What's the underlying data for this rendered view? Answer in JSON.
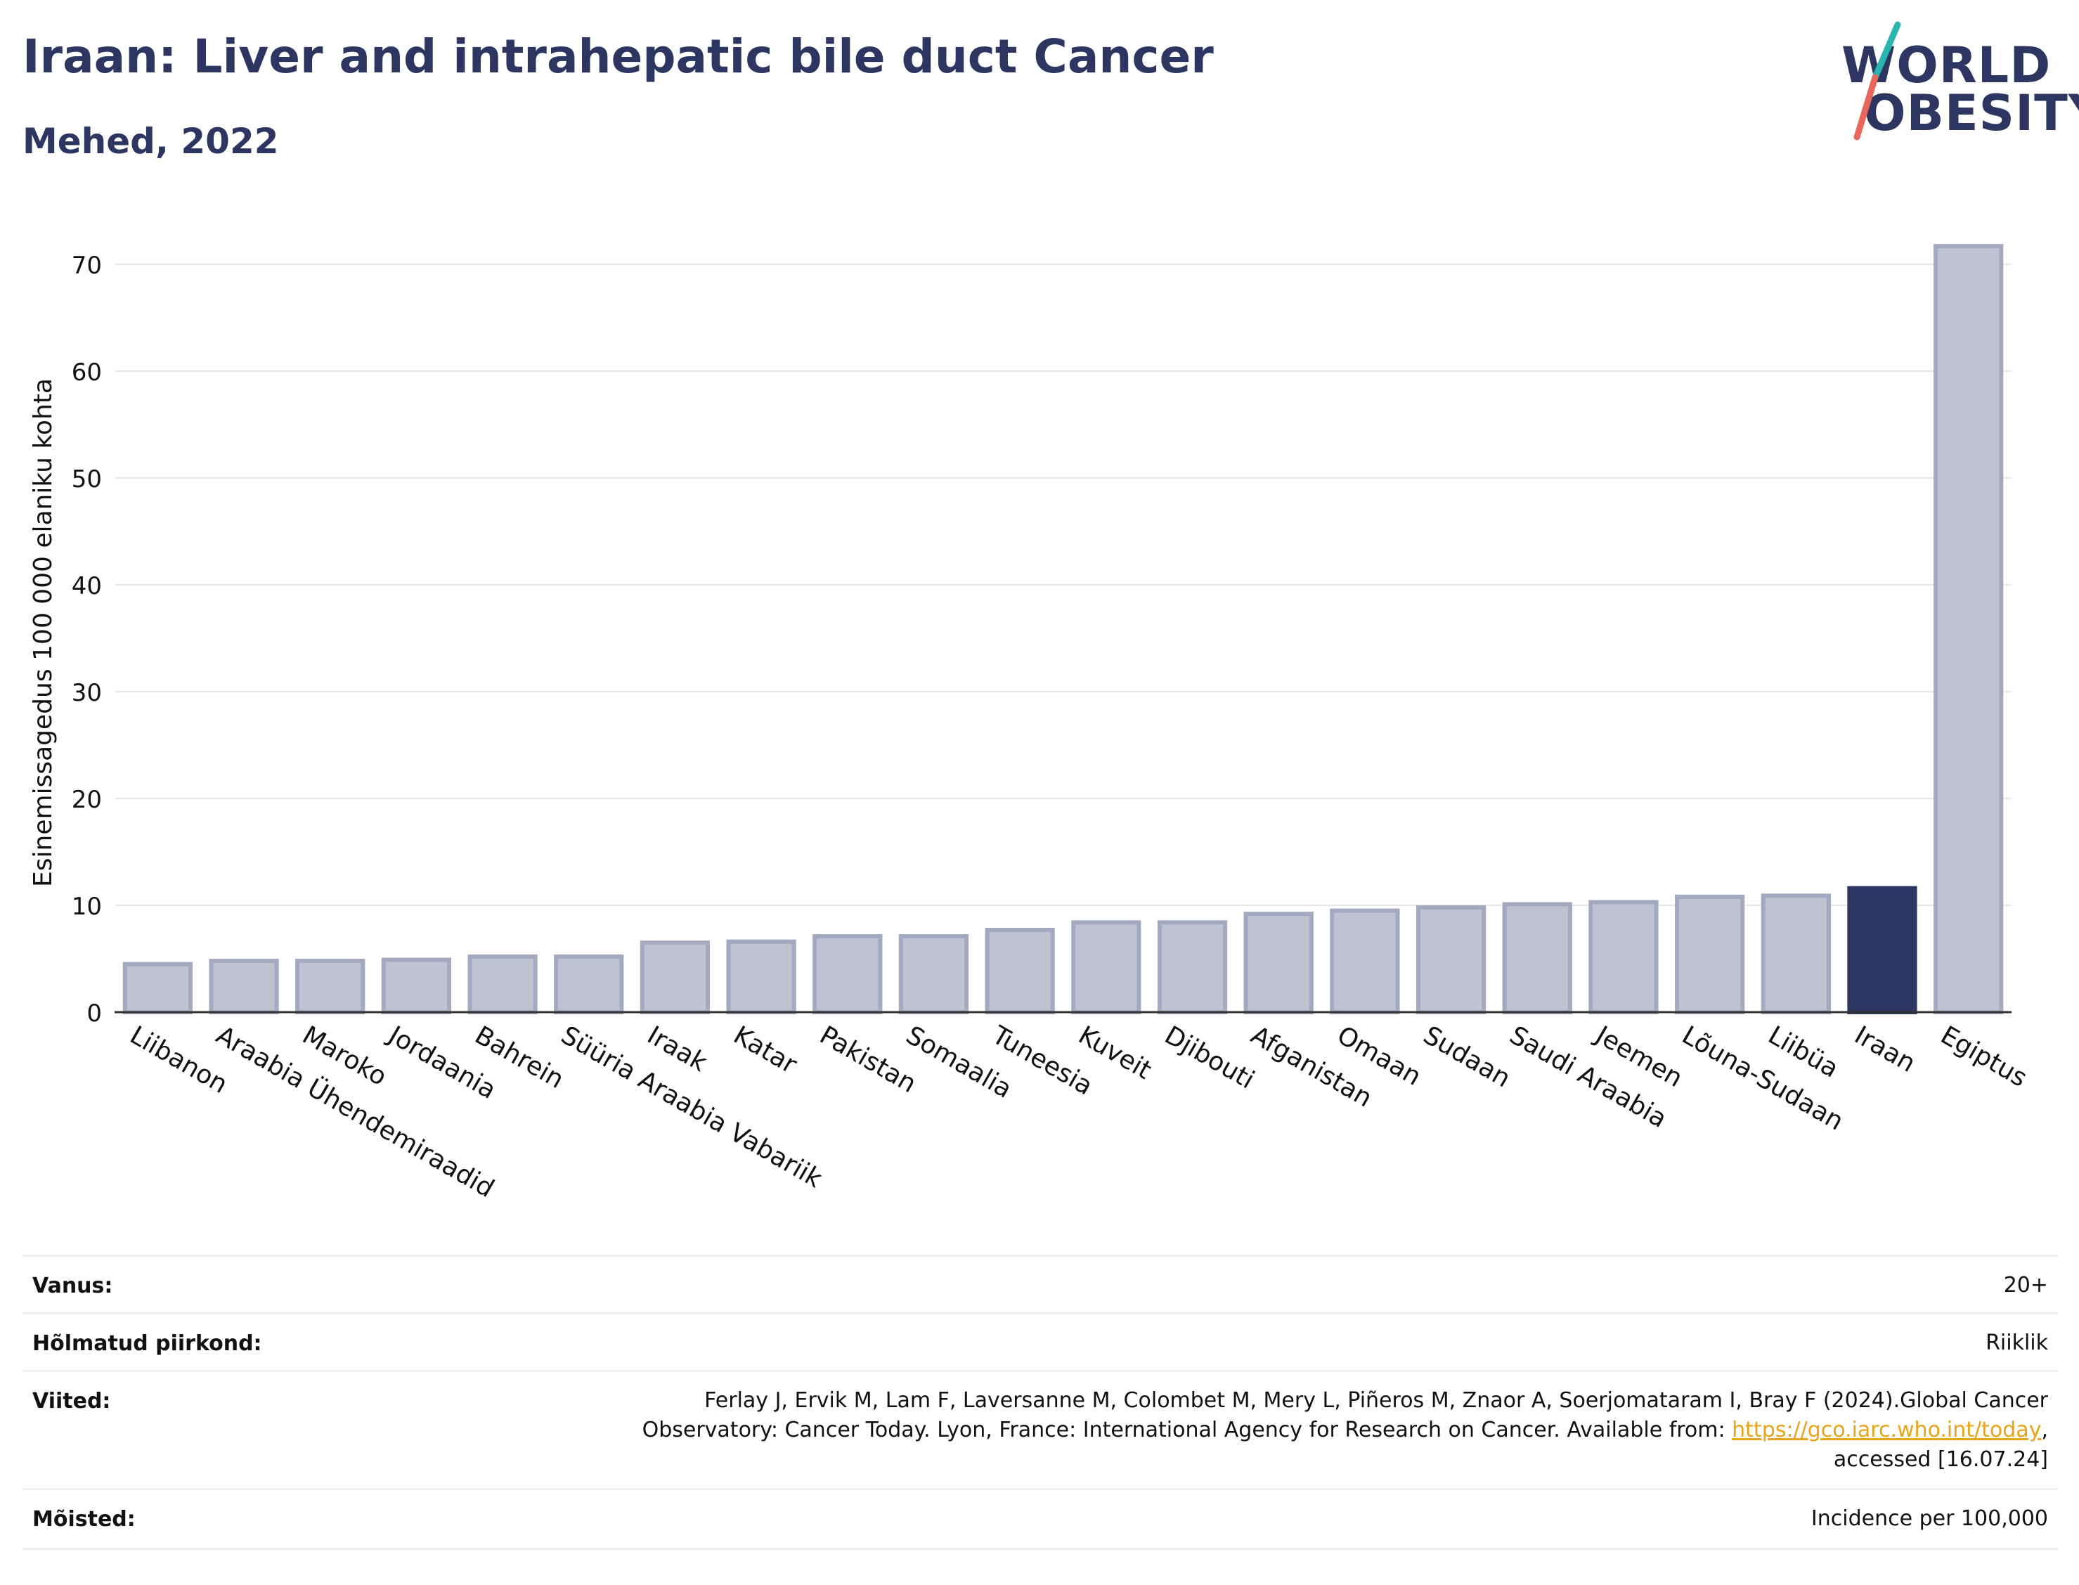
{
  "header": {
    "title": "Iraan: Liver and intrahepatic bile duct Cancer",
    "subtitle": "Mehed, 2022"
  },
  "logo": {
    "line1": "WORLD",
    "line2": "OBESITY",
    "colors": {
      "text": "#2d3561",
      "slash_top": "#2bb5b0",
      "slash_bottom": "#e8675a"
    }
  },
  "chart_data": {
    "type": "bar",
    "ylabel": "Esinemissagedus 100 000 elaniku kohta",
    "xlabel": "",
    "ylim": [
      0,
      75
    ],
    "yticks": [
      0,
      10,
      20,
      30,
      40,
      50,
      60,
      70
    ],
    "grid": true,
    "categories": [
      "Liibanon",
      "Araabia Ühendemiraadid",
      "Maroko",
      "Jordaania",
      "Bahrein",
      "Süüria Araabia Vabariik",
      "Iraak",
      "Katar",
      "Pakistan",
      "Somaalia",
      "Tuneesia",
      "Kuveit",
      "Djibouti",
      "Afganistan",
      "Omaan",
      "Sudaan",
      "Saudi Araabia",
      "Jeemen",
      "Lõuna-Sudaan",
      "Liibüa",
      "Iraan",
      "Egiptus"
    ],
    "values": [
      4.5,
      4.8,
      4.8,
      4.9,
      5.2,
      5.2,
      6.5,
      6.6,
      7.1,
      7.1,
      7.7,
      8.4,
      8.4,
      9.2,
      9.5,
      9.8,
      10.1,
      10.3,
      10.8,
      10.9,
      11.6,
      71.7
    ],
    "highlight": "Iraan",
    "colors": {
      "bar": "#bfc3d1",
      "bar_border": "#a3a9bf",
      "highlight": "#2d3561"
    }
  },
  "meta": {
    "age": {
      "label": "Vanus:",
      "value": "20+"
    },
    "coverage": {
      "label": "Hõlmatud piirkond:",
      "value": "Riiklik"
    },
    "references": {
      "label": "Viited:",
      "line1": "Ferlay J, Ervik M, Lam F, Laversanne M, Colombet M, Mery L, Piñeros M, Znaor A, Soerjomataram I, Bray F (2024).Global Cancer",
      "line2_prefix": "Observatory: Cancer Today. Lyon, France: International Agency for Research on Cancer. Available from: ",
      "link": "https://gco.iarc.who.int/today",
      "line2_suffix": ",",
      "line3": "accessed [16.07.24]"
    },
    "definitions": {
      "label": "Mõisted:",
      "value": "Incidence per 100,000"
    }
  }
}
